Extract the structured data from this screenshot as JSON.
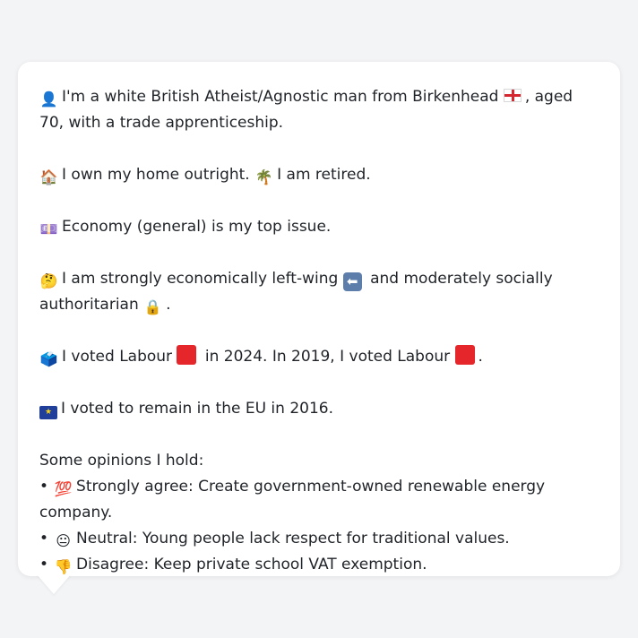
{
  "profile": {
    "intro_icon": "👤",
    "intro_text": "I'm a white British Atheist/Agnostic man from Birkenhead",
    "intro_flag": "england-flag-icon",
    "intro_tail": ", aged 70, with a trade apprenticeship.",
    "home_icon": "🏠",
    "home_text": "I own my home outright.",
    "retired_icon": "🌴",
    "retired_text": "I am retired.",
    "issue_icon": "💷",
    "issue_text": "Economy (general) is my top issue.",
    "ideology_icon": "🤔",
    "ideology_text_1": "I am strongly economically left-wing",
    "ideology_arrow": "⬅",
    "ideology_text_2": "and moderately socially authoritarian",
    "ideology_lock": "🔒",
    "ideology_end": ".",
    "vote_icon": "🗳️",
    "vote_text_1": "I voted Labour",
    "vote_text_2": "in 2024. In 2019, I voted Labour",
    "vote_end": ".",
    "party_color": "#e5262b",
    "eu_icon": "eu-flag-icon",
    "eu_stars": "★",
    "eu_text": "I voted to remain in the EU in 2016.",
    "opinions_heading": "Some opinions I hold:",
    "bullet_char": "•",
    "opinions": [
      {
        "emoji": "💯",
        "text": "Strongly agree: Create government-owned renewable energy company."
      },
      {
        "emoji": "😐",
        "text": "Neutral: Young people lack respect for traditional values."
      },
      {
        "emoji": "👎",
        "text": "Disagree: Keep private school VAT exemption."
      }
    ]
  }
}
